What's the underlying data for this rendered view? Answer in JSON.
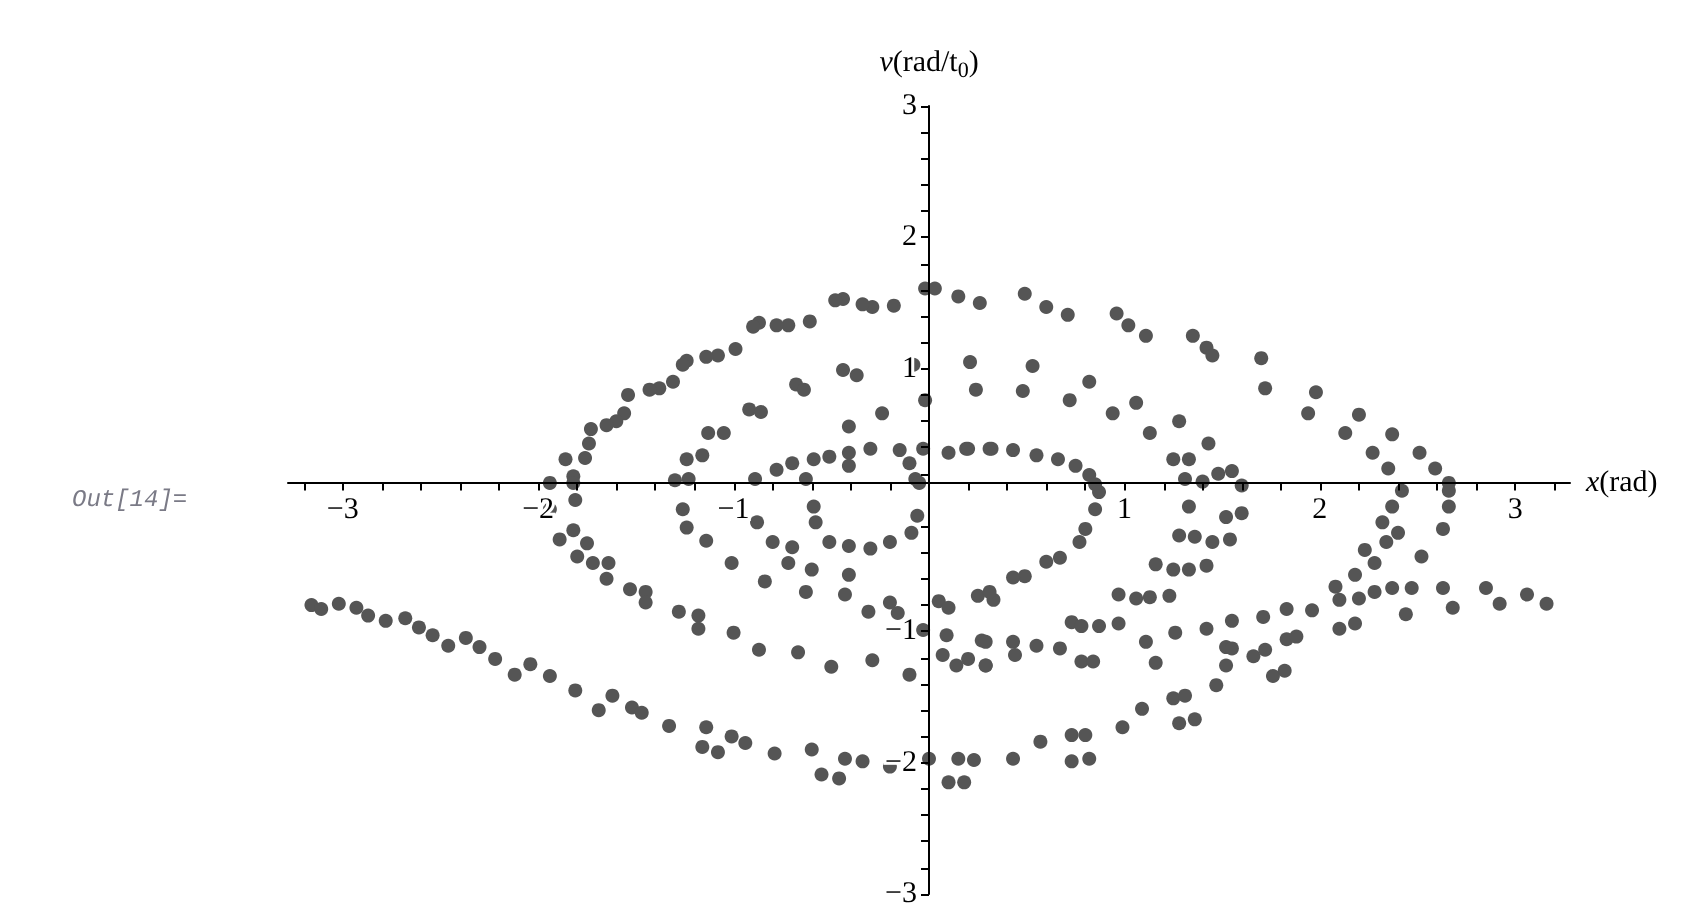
{
  "chart_data": {
    "type": "scatter",
    "xlabel": "x(rad)",
    "ylabel": "v(rad/t$_{0}$)",
    "annotations": [
      "Out[14]="
    ],
    "color": "#555555",
    "marker": "circle",
    "grid": false,
    "xlim": [
      -3.28,
      3.28
    ],
    "ylim": [
      -3,
      3
    ],
    "xticks": [
      {
        "value": -3.2,
        "label": null
      },
      {
        "value": -3,
        "label": "−3"
      },
      {
        "value": -2.8,
        "label": null
      },
      {
        "value": -2.6,
        "label": null
      },
      {
        "value": -2.4,
        "label": null
      },
      {
        "value": -2.2,
        "label": null
      },
      {
        "value": -2,
        "label": "−2"
      },
      {
        "value": -1.8,
        "label": null
      },
      {
        "value": -1.6,
        "label": null
      },
      {
        "value": -1.4,
        "label": null
      },
      {
        "value": -1.2,
        "label": null
      },
      {
        "value": -1,
        "label": "−1"
      },
      {
        "value": -0.8,
        "label": null
      },
      {
        "value": -0.6,
        "label": null
      },
      {
        "value": -0.4,
        "label": null
      },
      {
        "value": -0.2,
        "label": null
      },
      {
        "value": 0.2,
        "label": null
      },
      {
        "value": 0.4,
        "label": null
      },
      {
        "value": 0.6,
        "label": null
      },
      {
        "value": 0.8,
        "label": null
      },
      1,
      {
        "value": 1.2,
        "label": null
      },
      {
        "value": 1.4,
        "label": null
      },
      {
        "value": 1.6,
        "label": null
      },
      {
        "value": 1.8,
        "label": null
      },
      2,
      {
        "value": 2.2,
        "label": null
      },
      {
        "value": 2.4,
        "label": null
      },
      {
        "value": 2.6,
        "label": null
      },
      {
        "value": 2.8,
        "label": null
      },
      3,
      {
        "value": 3.2,
        "label": null
      }
    ],
    "yticks": [
      {
        "value": -3,
        "label": "−3"
      },
      {
        "value": -2.8,
        "label": null
      },
      {
        "value": -2.6,
        "label": null
      },
      {
        "value": -2.4,
        "label": null
      },
      {
        "value": -2.2,
        "label": null
      },
      {
        "value": -2,
        "label": "−2"
      },
      {
        "value": -1.8,
        "label": null
      },
      {
        "value": -1.6,
        "label": null
      },
      {
        "value": -1.4,
        "label": null
      },
      {
        "value": -1.2,
        "label": null
      },
      {
        "value": -1,
        "label": "−1"
      },
      {
        "value": -0.8,
        "label": null
      },
      {
        "value": -0.6,
        "label": null
      },
      {
        "value": -0.4,
        "label": null
      },
      {
        "value": -0.2,
        "label": null
      },
      {
        "value": 0.2,
        "label": null
      },
      {
        "value": 0.4,
        "label": null
      },
      {
        "value": 0.6,
        "label": null
      },
      {
        "value": 0.8,
        "label": null
      },
      1,
      {
        "value": 1.2,
        "label": null
      },
      {
        "value": 1.4,
        "label": null
      },
      {
        "value": 1.6,
        "label": null
      },
      {
        "value": 1.8,
        "label": null
      },
      2,
      {
        "value": 2.2,
        "label": null
      },
      {
        "value": 2.4,
        "label": null
      },
      {
        "value": 2.6,
        "label": null
      },
      {
        "value": 2.8,
        "label": null
      },
      3
    ],
    "x": [
      -0.02,
      0.03,
      0.15,
      0.26,
      -0.18,
      -0.29,
      -0.34,
      -0.44,
      -0.48,
      -0.61,
      -0.72,
      -0.78,
      -0.87,
      -0.9,
      -0.99,
      -1.08,
      -1.14,
      -1.24,
      -1.26,
      -1.31,
      -1.38,
      -1.43,
      -1.54,
      -1.56,
      -1.6,
      -1.65,
      -1.73,
      -1.74,
      -1.76,
      -1.86,
      -1.82,
      -1.94,
      0.21,
      0.24,
      -0.02,
      -0.08,
      -0.24,
      -0.44,
      -0.37,
      -0.41,
      -0.68,
      -0.64,
      -0.92,
      -0.86,
      -1.13,
      -1.05,
      -1.24,
      -1.16,
      -1.3,
      -1.23,
      0.32,
      0.19,
      0.1,
      -0.03,
      -0.15,
      -0.3,
      -0.41,
      -0.51,
      -0.59,
      -0.7,
      -0.78,
      -0.89,
      -0.1,
      -0.07,
      -0.63,
      -0.41,
      0.49,
      0.6,
      0.71,
      0.96,
      1.02,
      1.11,
      1.35,
      1.42,
      1.45,
      1.7,
      1.72,
      1.98,
      1.94,
      2.2,
      2.13,
      2.27,
      2.37,
      2.51,
      2.59,
      2.66,
      2.35,
      0.53,
      0.48,
      0.82,
      0.72,
      1.06,
      0.94,
      1.28,
      1.13,
      1.43,
      1.25,
      1.33,
      1.55,
      1.48,
      1.31,
      1.4,
      1.6,
      0.2,
      0.31,
      0.43,
      0.55,
      0.66,
      0.75,
      0.82,
      0.85,
      -3.16,
      -3.11,
      -3.02,
      -2.93,
      -2.87,
      -2.78,
      -2.68,
      -2.61,
      -2.54,
      -2.46,
      -2.37,
      -2.3,
      -2.22,
      -2.12,
      -2.04,
      -1.94,
      -1.81,
      -1.69,
      -1.62,
      -1.52,
      -1.47,
      -1.33,
      -1.14,
      -1.16,
      -1.08,
      -1.01,
      -0.94,
      -0.79,
      -0.6,
      -0.55,
      -0.46,
      -0.43,
      -0.34,
      -0.2,
      0,
      0.1,
      0.18,
      0.15,
      0.23,
      -1.89,
      -1.82,
      -1.75,
      -1.8,
      -1.72,
      -1.64,
      -1.65,
      -1.53,
      -1.45,
      -1.45,
      -1.28,
      -1.18,
      -1.18,
      -1,
      -0.87,
      -0.67,
      -0.5,
      -0.29,
      -0.1,
      -0.03,
      0.09,
      0.14,
      0.07,
      0.29,
      0.27,
      -1.94,
      -1.81,
      -1.24,
      -1.14,
      -1.01,
      -0.84,
      -0.72,
      -0.6,
      -0.63,
      -0.41,
      -0.43,
      -0.31,
      -0.2,
      -0.16,
      0.05,
      0.1,
      0.25,
      0.33,
      -1.26,
      -0.88,
      -0.8,
      -0.7,
      -0.59,
      -0.58,
      -0.51,
      -0.41,
      -0.3,
      -0.2,
      -0.09,
      -0.06,
      -0.05,
      -1.82,
      0.87,
      0.85,
      0.8,
      0.77,
      0.67,
      0.6,
      0.49,
      0.43,
      0.31,
      1.33,
      1.28,
      1.36,
      1.45,
      1.54,
      1.6,
      1.52,
      1.16,
      1.25,
      1.33,
      1.42,
      0.97,
      1.06,
      1.13,
      1.23,
      0.73,
      0.78,
      0.87,
      0.97,
      0.78,
      0.84,
      0.67,
      0.55,
      0.43,
      0.44,
      0.29,
      0.29,
      0.2,
      1.11,
      1.16,
      1.26,
      1.42,
      1.55,
      1.71,
      1.83,
      1.52,
      1.55,
      1.66,
      1.72,
      1.52,
      1.76,
      1.82,
      1.83,
      1.88,
      1.96,
      2.08,
      2.1,
      2.2,
      2.18,
      2.28,
      2.23,
      2.34,
      2.4,
      2.32,
      2.37,
      2.42,
      2.1,
      2.18,
      2.28,
      2.37,
      2.47,
      2.44,
      2.52,
      2.63,
      2.66,
      2.66,
      2.63,
      2.68,
      2.85,
      2.92,
      3.06,
      3.16,
      0.43,
      0.57,
      0.73,
      0.8,
      0.73,
      0.82,
      0.99,
      1.09,
      1.25,
      1.31,
      1.28,
      1.36,
      1.47
    ],
    "values": [
      1.61,
      1.61,
      1.55,
      1.5,
      1.48,
      1.47,
      1.49,
      1.53,
      1.52,
      1.36,
      1.33,
      1.33,
      1.35,
      1.32,
      1.15,
      1.1,
      1.09,
      1.06,
      1.03,
      0.9,
      0.85,
      0.84,
      0.8,
      0.66,
      0.6,
      0.57,
      0.54,
      0.43,
      0.32,
      0.31,
      0.18,
      0.13,
      1.05,
      0.84,
      0.76,
      1.03,
      0.66,
      0.99,
      0.95,
      0.56,
      0.88,
      0.84,
      0.69,
      0.67,
      0.51,
      0.51,
      0.31,
      0.34,
      0.15,
      0.16,
      0.39,
      0.39,
      0.36,
      0.39,
      0.38,
      0.39,
      0.36,
      0.33,
      0.31,
      0.28,
      0.23,
      0.16,
      0.28,
      0.16,
      0.16,
      0.26,
      1.57,
      1.47,
      1.41,
      1.42,
      1.33,
      1.25,
      1.25,
      1.16,
      1.1,
      1.08,
      0.85,
      0.82,
      0.66,
      0.65,
      0.51,
      0.36,
      0.5,
      0.36,
      0.24,
      0.13,
      0.24,
      1.02,
      0.83,
      0.9,
      0.76,
      0.74,
      0.66,
      0.6,
      0.51,
      0.43,
      0.31,
      0.31,
      0.22,
      0.2,
      0.16,
      0.14,
      0.11,
      0.39,
      0.39,
      0.38,
      0.34,
      0.31,
      0.26,
      0.19,
      0.12,
      -0.8,
      -0.83,
      -0.79,
      -0.82,
      -0.88,
      -0.92,
      -0.9,
      -0.97,
      -1.03,
      -1.11,
      -1.05,
      -1.12,
      -1.21,
      -1.33,
      -1.25,
      -1.34,
      -1.45,
      -1.6,
      -1.49,
      -1.58,
      -1.62,
      -1.72,
      -1.73,
      -1.88,
      -1.92,
      -1.8,
      -1.85,
      -1.93,
      -1.9,
      -2.09,
      -2.12,
      -1.97,
      -1.99,
      -2.03,
      -1.97,
      -2.15,
      -2.15,
      -1.97,
      -1.98,
      -0.3,
      -0.23,
      -0.33,
      -0.43,
      -0.48,
      -0.48,
      -0.6,
      -0.68,
      -0.7,
      -0.78,
      -0.85,
      -0.88,
      -0.98,
      -1.01,
      -1.14,
      -1.16,
      -1.27,
      -1.22,
      -1.33,
      -0.99,
      -1.03,
      -1.26,
      -1.18,
      -1.26,
      -1.07,
      -0.07,
      0,
      -0.21,
      -0.31,
      -0.48,
      -0.62,
      -0.48,
      -0.53,
      -0.7,
      -0.57,
      -0.72,
      -0.85,
      -0.78,
      -0.86,
      -0.77,
      -0.82,
      -0.73,
      -0.76,
      -0.07,
      -0.17,
      -0.32,
      -0.36,
      -0.05,
      -0.17,
      -0.32,
      -0.35,
      -0.37,
      -0.32,
      -0.25,
      -0.12,
      0.13,
      0.13,
      0.06,
      -0.07,
      -0.22,
      -0.32,
      -0.44,
      -0.47,
      -0.58,
      -0.59,
      -0.7,
      -0.05,
      -0.27,
      -0.28,
      -0.32,
      -0.3,
      -0.1,
      -0.13,
      -0.49,
      -0.53,
      -0.53,
      -0.5,
      -0.72,
      -0.75,
      -0.74,
      -0.73,
      -0.93,
      -0.96,
      -0.96,
      -0.94,
      -1.23,
      -1.23,
      -1.13,
      -1.11,
      -1.08,
      -1.18,
      -1.08,
      -1.26,
      -1.21,
      -1.08,
      -1.24,
      -1.01,
      -0.98,
      -0.92,
      -0.89,
      -0.83,
      -1.12,
      -1.13,
      -1.19,
      -1.14,
      -1.26,
      -1.34,
      -1.3,
      -1.06,
      -1.04,
      -0.84,
      -0.66,
      -0.76,
      -0.75,
      -0.57,
      -0.48,
      -0.38,
      -0.32,
      -0.25,
      -0.17,
      -0.05,
      0.07,
      -0.98,
      -0.94,
      -0.7,
      -0.67,
      -0.67,
      -0.87,
      -0.43,
      -0.22,
      -0.05,
      0.07,
      -0.67,
      -0.82,
      -0.67,
      -0.79,
      -0.72,
      -0.79,
      -1.97,
      -1.84,
      -1.79,
      -1.79,
      -1.99,
      -1.97,
      -1.73,
      -1.59,
      -1.51,
      -1.49,
      -1.7,
      -1.67,
      -1.41
    ]
  }
}
